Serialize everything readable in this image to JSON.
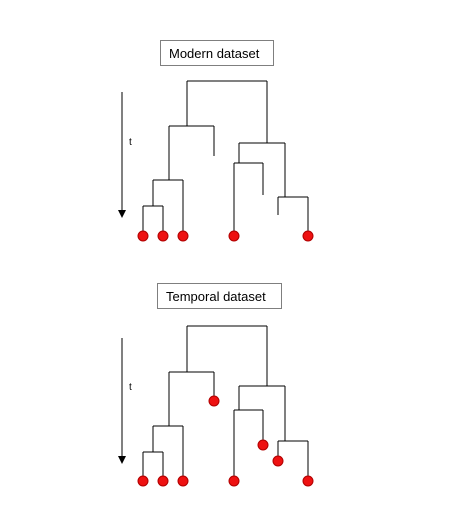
{
  "panels": [
    {
      "title": "Modern dataset",
      "axis_label": "t"
    },
    {
      "title": "Temporal dataset",
      "axis_label": "t"
    }
  ],
  "colors": {
    "tree_line": "#000000",
    "tip_fill": "#ee1111",
    "tip_stroke": "#b00000",
    "box_border": "#7f7f7f"
  }
}
